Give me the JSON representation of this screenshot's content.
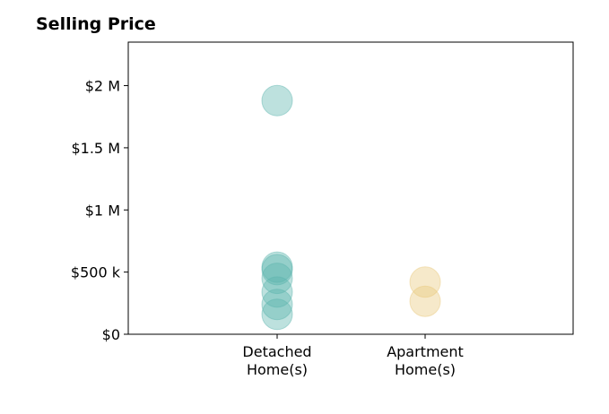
{
  "chart_data": {
    "type": "scatter",
    "title": "Selling Price",
    "xlabel": "",
    "ylabel": "",
    "categories": [
      [
        "Detached",
        "Home(s)"
      ],
      [
        "Apartment",
        "Home(s)"
      ]
    ],
    "ylim": [
      0,
      2350000
    ],
    "yticks": [
      {
        "value": 0,
        "label": "$0"
      },
      {
        "value": 500000,
        "label": "$500 k"
      },
      {
        "value": 1000000,
        "label": "$1 M"
      },
      {
        "value": 1500000,
        "label": "$1.5 M"
      },
      {
        "value": 2000000,
        "label": "$2 M"
      }
    ],
    "series": [
      {
        "category_index": 0,
        "color": "#5ab4ac",
        "values": [
          1880000,
          540000,
          520000,
          450000,
          340000,
          240000,
          160000
        ]
      },
      {
        "category_index": 1,
        "color": "#e9c77b",
        "values": [
          420000,
          265000
        ]
      }
    ],
    "grid": false
  }
}
